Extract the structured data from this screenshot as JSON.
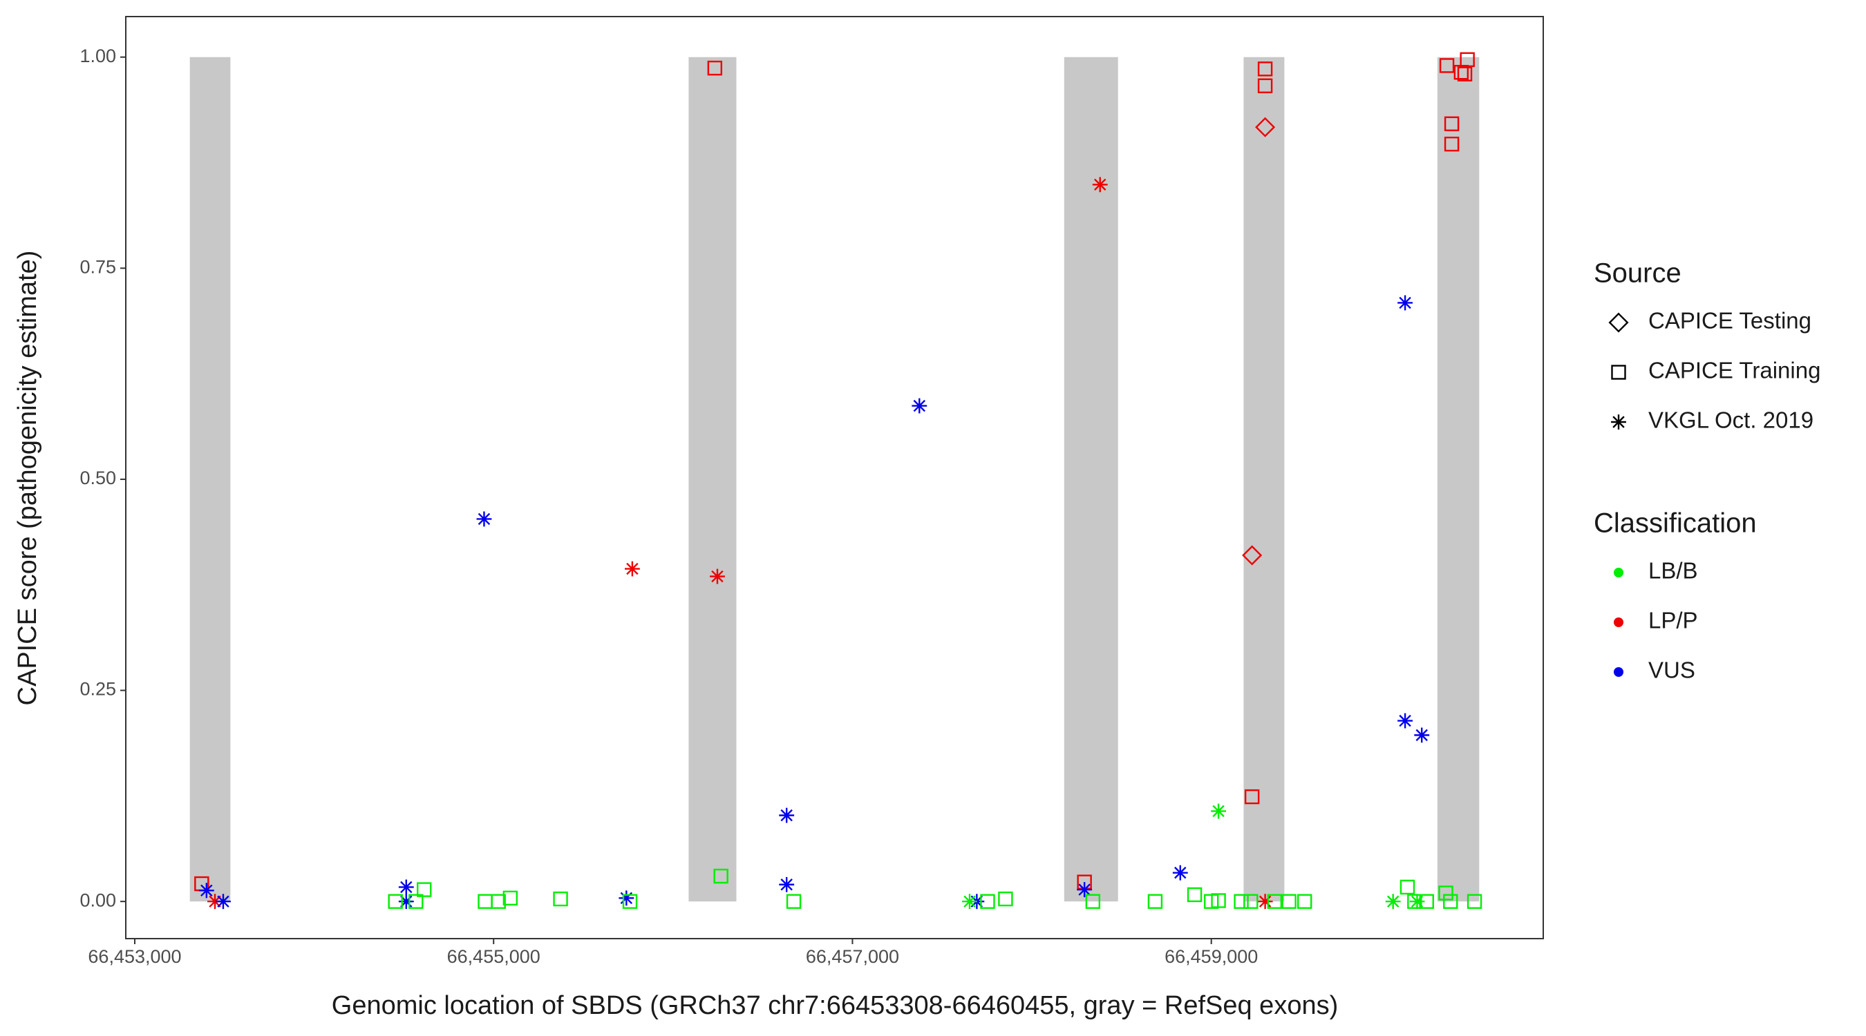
{
  "chart_data": {
    "type": "scatter",
    "x_label": "Genomic location of SBDS (GRCh37 chr7:66453308-66460455, gray = RefSeq exons)",
    "y_label": "CAPICE score (pathogenicity estimate)",
    "xlim": [
      66452950,
      66460850
    ],
    "ylim": [
      -0.044,
      1.048
    ],
    "xticks": [
      {
        "value": 66453000,
        "label": "66,453,000"
      },
      {
        "value": 66455000,
        "label": "66,455,000"
      },
      {
        "value": 66457000,
        "label": "66,457,000"
      },
      {
        "value": 66459000,
        "label": "66,459,000"
      }
    ],
    "yticks": [
      {
        "value": 0,
        "label": "0.00"
      },
      {
        "value": 0.25,
        "label": "0.25"
      },
      {
        "value": 0.5,
        "label": "0.50"
      },
      {
        "value": 0.75,
        "label": "0.75"
      },
      {
        "value": 1,
        "label": "1.00"
      }
    ],
    "grid": false,
    "exon_color": "#c8c8c8",
    "exons": [
      [
        66453307,
        66453533
      ],
      [
        66456087,
        66456353
      ],
      [
        66458180,
        66458480
      ],
      [
        66459180,
        66459407
      ],
      [
        66460260,
        66460493
      ]
    ],
    "exon_ylim": [
      0,
      1
    ],
    "shape_legend": {
      "title": "Source",
      "items": [
        {
          "name": "CAPICE Testing",
          "shape": "diamond"
        },
        {
          "name": "CAPICE Training",
          "shape": "square"
        },
        {
          "name": "VKGL Oct. 2019",
          "shape": "star"
        }
      ]
    },
    "color_legend": {
      "title": "Classification",
      "items": [
        {
          "name": "LB/B",
          "color": "#00ee00"
        },
        {
          "name": "LP/P",
          "color": "#ee0000"
        },
        {
          "name": "VUS",
          "color": "#0000ee"
        }
      ]
    },
    "series": [
      {
        "shape": "square",
        "color": "#ee0000",
        "x": [
          66453373,
          66456233,
          66458293,
          66459300,
          66459300,
          66459227,
          66460313,
          66460427,
          66460393,
          66460413,
          66460340,
          66460340
        ],
        "y": [
          0.021,
          0.987,
          0.023,
          0.986,
          0.966,
          0.124,
          0.99,
          0.997,
          0.982,
          0.98,
          0.921,
          0.897
        ]
      },
      {
        "shape": "diamond",
        "color": "#ee0000",
        "x": [
          66459300,
          66459227
        ],
        "y": [
          0.917,
          0.41
        ]
      },
      {
        "shape": "star",
        "color": "#ee0000",
        "x": [
          66453447,
          66455773,
          66456247,
          66458380,
          66459300
        ],
        "y": [
          0,
          0.394,
          0.385,
          0.849,
          0
        ]
      },
      {
        "shape": "star",
        "color": "#0000ee",
        "x": [
          66453400,
          66453493,
          66454513,
          66454513,
          66454947,
          66455740,
          66456633,
          66456633,
          66457373,
          66457693,
          66458293,
          66458827,
          66460080,
          66460080,
          66460173
        ],
        "y": [
          0.013,
          0,
          0.017,
          0,
          0.453,
          0.004,
          0.102,
          0.02,
          0.587,
          0,
          0.014,
          0.034,
          0.709,
          0.214,
          0.197
        ]
      },
      {
        "shape": "star",
        "color": "#00ee00",
        "x": [
          66457653,
          66459040,
          66460013,
          66460147
        ],
        "y": [
          0,
          0.107,
          0,
          0
        ]
      },
      {
        "shape": "square",
        "color": "#00ee00",
        "x": [
          66454453,
          66454567,
          66454613,
          66454953,
          66455027,
          66455093,
          66455373,
          66455760,
          66456267,
          66456673,
          66457753,
          66457853,
          66458340,
          66458687,
          66458907,
          66459000,
          66459040,
          66459167,
          66459220,
          66459353,
          66459433,
          66459520,
          66460093,
          66460133,
          66460200,
          66460307,
          66460333,
          66460467
        ],
        "y": [
          0,
          0,
          0.014,
          0,
          0,
          0.004,
          0.003,
          0,
          0.03,
          0,
          0,
          0.003,
          0,
          0,
          0.008,
          0,
          0.001,
          0,
          0,
          0,
          0,
          0,
          0.017,
          0,
          0,
          0.01,
          0,
          0
        ]
      }
    ]
  }
}
